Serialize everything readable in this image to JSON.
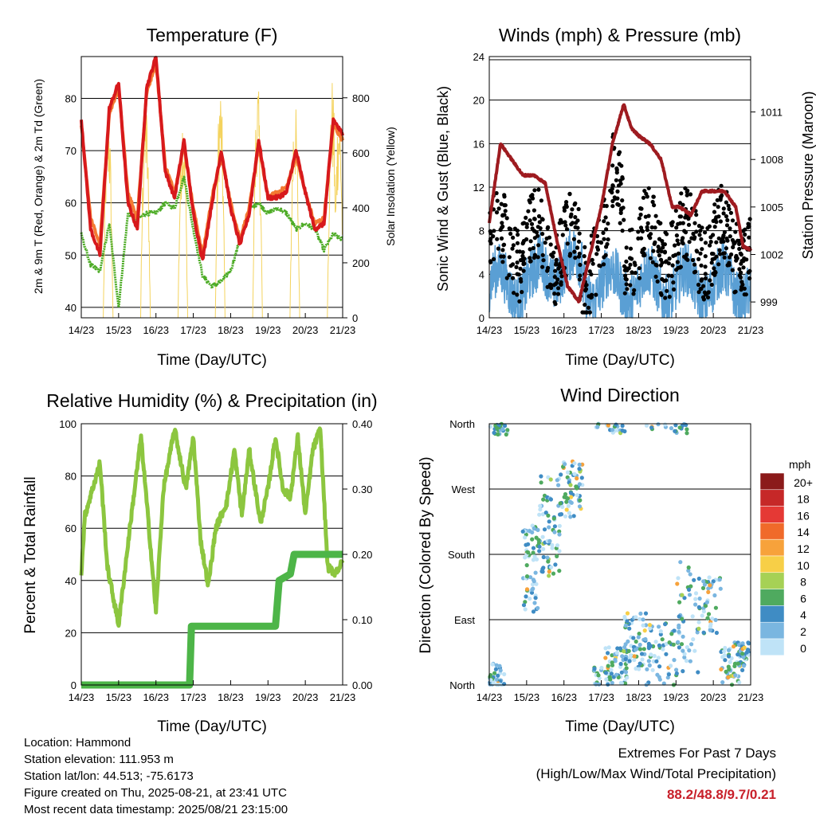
{
  "x_ticks": [
    "14/23",
    "15/23",
    "16/23",
    "17/23",
    "18/23",
    "19/23",
    "20/23",
    "21/23"
  ],
  "colors": {
    "t2m": "#d7191c",
    "t9m": "#f47a32",
    "td": "#4dac26",
    "sol": "#f4d35e",
    "wind": "#5a9fd4",
    "gust": "#000000",
    "pressure": "#9e1b20",
    "rh": "#8cc63f",
    "rain": "#4db548",
    "extreme": "#c8202a"
  },
  "charts": {
    "temperature": {
      "title": "Temperature (F)",
      "xlabel": "Time (Day/UTC)",
      "ylabel_left": "2m & 9m T (Red, Orange) & 2m Td (Green)",
      "ylabel_right": "Solar Insolation (Yellow)"
    },
    "winds": {
      "title": "Winds (mph) & Pressure (mb)",
      "xlabel": "Time (Day/UTC)",
      "ylabel_left": "Sonic Wind & Gust (Blue, Black)",
      "ylabel_right": "Station Pressure (Maroon)"
    },
    "humidity": {
      "title": "Relative Humidity (%) & Precipitation (in)",
      "xlabel": "Time (Day/UTC)",
      "ylabel_left": "Percent & Total Rainfall"
    },
    "direction": {
      "title": "Wind Direction",
      "xlabel": "Time (Day/UTC)",
      "ylabel_left": "Direction (Colored By Speed)",
      "legend_unit": "mph"
    }
  },
  "chart_data": [
    {
      "type": "line",
      "x_days": [
        0,
        0.25,
        0.5,
        0.75,
        1,
        1.25,
        1.5,
        1.75,
        2,
        2.25,
        2.5,
        2.75,
        3,
        3.25,
        3.5,
        3.75,
        4,
        4.25,
        4.5,
        4.75,
        5,
        5.25,
        5.5,
        5.75,
        6,
        6.25,
        6.5,
        6.75,
        7
      ],
      "series": [
        {
          "key": "t2m",
          "values": [
            76,
            55,
            50,
            78,
            83,
            60,
            55,
            82,
            88,
            66,
            61,
            72,
            58,
            49,
            60,
            70,
            59,
            52,
            58,
            72,
            61,
            61,
            62,
            70,
            62,
            55,
            56,
            76,
            73
          ]
        },
        {
          "key": "t9m",
          "values": [
            75,
            57,
            52,
            77,
            82,
            62,
            57,
            81,
            87,
            67,
            62,
            71,
            59,
            50,
            61,
            69,
            60,
            53,
            59,
            71,
            61,
            62,
            63,
            69,
            62,
            56,
            57,
            75,
            72
          ]
        },
        {
          "key": "td",
          "values": [
            54,
            48,
            47,
            56,
            40,
            58,
            57,
            58,
            58,
            60,
            59,
            65,
            55,
            46,
            44,
            45,
            47,
            53,
            59,
            60,
            58,
            59,
            58,
            55,
            56,
            55,
            51,
            54,
            53
          ]
        }
      ],
      "solar": {
        "peaks_x": [
          0.72,
          1.72,
          2.72,
          3.72,
          4.72,
          5.72,
          6.72,
          6.9
        ],
        "peaks_v": [
          790,
          820,
          780,
          860,
          870,
          810,
          880,
          800
        ]
      },
      "ylim": [
        38,
        88
      ],
      "yticks": [
        40,
        50,
        60,
        70,
        80
      ],
      "ylim_right": [
        0,
        950
      ],
      "yticks_right": [
        0,
        200,
        400,
        600,
        800
      ]
    },
    {
      "type": "scatter+line",
      "pressure_x": [
        0,
        0.3,
        0.6,
        0.9,
        1.2,
        1.5,
        1.8,
        2.1,
        2.4,
        2.7,
        3.0,
        3.3,
        3.6,
        3.8,
        4.0,
        4.3,
        4.6,
        4.9,
        5.1,
        5.4,
        5.7,
        6.0,
        6.3,
        6.6,
        6.8,
        7.0
      ],
      "pressure_v": [
        1004,
        1009,
        1008,
        1007,
        1007,
        1006.5,
        1003,
        1000,
        999,
        1002,
        1005,
        1009,
        1011.5,
        1010,
        1009.5,
        1009,
        1008,
        1005,
        1005,
        1004.5,
        1006,
        1006,
        1006,
        1005,
        1002.5,
        1002.3
      ],
      "ylim": [
        0,
        24
      ],
      "yticks": [
        0,
        4,
        8,
        12,
        16,
        20,
        24
      ],
      "ylim_right": [
        998,
        1014.5
      ],
      "yticks_right": [
        999,
        1002,
        1005,
        1008,
        1011
      ]
    },
    {
      "type": "line",
      "rh_x": [
        0,
        0.1,
        0.3,
        0.5,
        0.7,
        1.0,
        1.3,
        1.6,
        1.8,
        2.0,
        2.2,
        2.5,
        2.8,
        3.0,
        3.2,
        3.4,
        3.6,
        3.9,
        4.1,
        4.3,
        4.5,
        4.8,
        5.0,
        5.2,
        5.4,
        5.6,
        5.8,
        6.0,
        6.2,
        6.4,
        6.6,
        6.8,
        7.0
      ],
      "rh_v": [
        43,
        65,
        75,
        85,
        45,
        23,
        60,
        95,
        62,
        28,
        75,
        98,
        75,
        95,
        55,
        38,
        60,
        70,
        90,
        65,
        90,
        62,
        75,
        95,
        75,
        72,
        95,
        65,
        90,
        98,
        45,
        43,
        47
      ],
      "rain_x": [
        0,
        2.9,
        2.95,
        5.2,
        5.3,
        5.6,
        5.7,
        7.0
      ],
      "rain_v": [
        0,
        0,
        0.09,
        0.09,
        0.16,
        0.17,
        0.2,
        0.2
      ],
      "ylim": [
        0,
        100
      ],
      "yticks": [
        0,
        20,
        40,
        60,
        80,
        100
      ],
      "ylim_right": [
        0,
        0.4
      ],
      "yticks_right": [
        "0.00",
        "0.10",
        "0.20",
        "0.30",
        "0.40"
      ]
    },
    {
      "type": "scatter",
      "yticks": [
        "North",
        "East",
        "South",
        "West",
        "North"
      ],
      "legend_labels": [
        "20+",
        "18",
        "16",
        "14",
        "12",
        "10",
        "8",
        "6",
        "4",
        "2",
        "0"
      ],
      "legend_colors": [
        "#8b1a1a",
        "#c62828",
        "#e53935",
        "#f06a2a",
        "#f7a23b",
        "#f7cf47",
        "#a6d155",
        "#4faa5f",
        "#3f8cc4",
        "#7ab6e0",
        "#bfe3f7"
      ]
    }
  ],
  "info": {
    "location": "Location: Hammond",
    "elevation": "Station elevation: 111.953 m",
    "latlon": "Station lat/lon: 44.513; -75.6173",
    "created": "Figure created on Thu, 2025-08-21, at 23:41 UTC",
    "recent": "Most recent data timestamp: 2025/08/21 23:15:00"
  },
  "extremes": {
    "title": "Extremes For Past 7 Days",
    "subtitle": "(High/Low/Max Wind/Total Precipitation)",
    "values": "88.2/48.8/9.7/0.21"
  }
}
